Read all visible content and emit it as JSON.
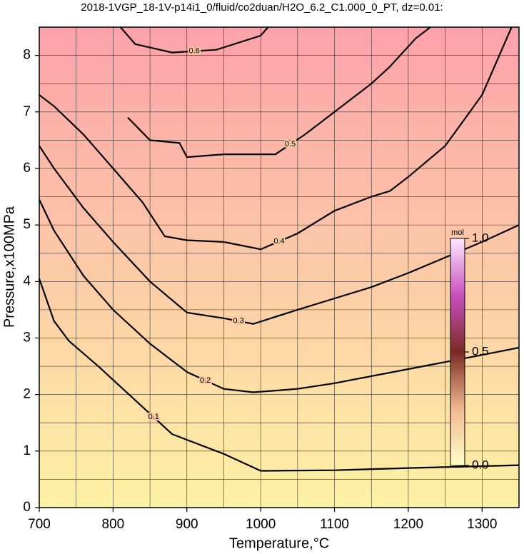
{
  "chart_data": {
    "type": "contour",
    "title": "2018-1VGP_18-1V-p14i1_0/fluid/co2duan/H2O_6.2_C1.000_0_PT, dz=0.01:",
    "x_label": "Temperature,°C",
    "y_label": "Pressure,x100MPa",
    "xlim": [
      700,
      1350
    ],
    "ylim": [
      0,
      8.5
    ],
    "xticks": [
      700,
      800,
      900,
      1000,
      1100,
      1200,
      1300
    ],
    "yticks": [
      0,
      1,
      2,
      3,
      4,
      5,
      6,
      7,
      8
    ],
    "xminor": [
      750,
      850,
      950,
      1050,
      1150,
      1250
    ],
    "yminor": [
      0.5,
      1.5,
      2.5,
      3.5,
      4.5,
      5.5,
      6.5,
      7.5
    ],
    "grid": true,
    "background_colors": [
      "#fdf2a4",
      "#fca2aa"
    ],
    "line_color": "#000000",
    "series": [
      {
        "name": "0.1",
        "x": [
          700,
          720,
          740,
          780,
          830,
          880,
          950,
          1000,
          1100,
          1200,
          1350
        ],
        "values": [
          4.05,
          3.3,
          2.95,
          2.5,
          1.9,
          1.3,
          0.95,
          0.65,
          0.66,
          0.7,
          0.75
        ]
      },
      {
        "name": "0.2",
        "x": [
          700,
          720,
          760,
          800,
          850,
          900,
          950,
          990,
          1050,
          1100,
          1200,
          1300,
          1350
        ],
        "values": [
          5.45,
          4.9,
          4.1,
          3.5,
          2.9,
          2.4,
          2.1,
          2.04,
          2.1,
          2.2,
          2.45,
          2.7,
          2.83
        ]
      },
      {
        "name": "0.3",
        "x": [
          700,
          720,
          760,
          800,
          850,
          900,
          950,
          990,
          1050,
          1100,
          1150,
          1200,
          1300,
          1350
        ],
        "values": [
          6.4,
          6.0,
          5.3,
          4.7,
          4.0,
          3.45,
          3.35,
          3.25,
          3.5,
          3.7,
          3.9,
          4.15,
          4.7,
          5.0
        ]
      },
      {
        "name": "0.4",
        "x": [
          700,
          720,
          760,
          800,
          840,
          870,
          900,
          950,
          1000,
          1050,
          1100,
          1150,
          1175,
          1200,
          1250,
          1300,
          1330,
          1340
        ],
        "values": [
          7.3,
          7.1,
          6.6,
          6.0,
          5.4,
          4.8,
          4.73,
          4.7,
          4.57,
          4.85,
          5.25,
          5.5,
          5.6,
          5.85,
          6.4,
          7.3,
          8.2,
          8.5
        ]
      },
      {
        "name": "0.5",
        "x": [
          820,
          850,
          890,
          900,
          950,
          1020,
          1060,
          1100,
          1150,
          1175,
          1210,
          1230
        ],
        "values": [
          6.9,
          6.5,
          6.45,
          6.2,
          6.25,
          6.25,
          6.6,
          7.0,
          7.5,
          7.8,
          8.3,
          8.5
        ]
      },
      {
        "name": "0.6",
        "x": [
          810,
          830,
          880,
          940,
          1000,
          1010
        ],
        "values": [
          8.5,
          8.2,
          8.05,
          8.1,
          8.35,
          8.5
        ]
      }
    ],
    "colorbar": {
      "label": "mol",
      "lim": [
        0,
        1
      ],
      "ticks": [
        {
          "value": 0,
          "label": "0.0"
        },
        {
          "value": 0.5,
          "label": "0.5"
        },
        {
          "value": 1,
          "label": "1.0"
        }
      ],
      "colors": [
        "#ffffc8",
        "#f0b890",
        "#7a2a24",
        "#c850c0",
        "#ffe8ff"
      ]
    }
  }
}
